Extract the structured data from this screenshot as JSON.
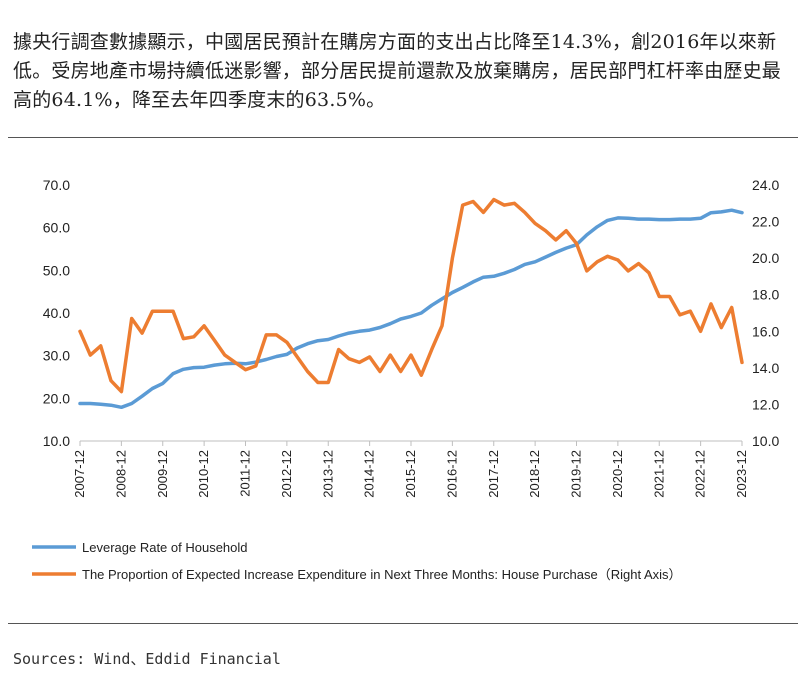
{
  "caption": "據央行調查數據顯示，中國居民預計在購房方面的支出占比降至14.3%，創2016年以來新低。受房地產市場持續低迷影響，部分居民提前還款及放棄購房，居民部門杠杆率由歷史最高的64.1%，降至去年四季度末的63.5%。",
  "source": "Sources: Wind、Eddid Financial",
  "chart_data": {
    "type": "line",
    "title": "",
    "xlabel": "",
    "ylabel": "",
    "left_axis": {
      "ylim": [
        10.0,
        70.0
      ],
      "ticks": [
        "10.0",
        "20.0",
        "30.0",
        "40.0",
        "50.0",
        "60.0",
        "70.0"
      ]
    },
    "right_axis": {
      "ylim": [
        10.0,
        24.0
      ],
      "ticks": [
        "10.0",
        "12.0",
        "14.0",
        "16.0",
        "18.0",
        "20.0",
        "22.0",
        "24.0"
      ]
    },
    "x_ticks": [
      "2007-12",
      "2008-12",
      "2009-12",
      "2010-12",
      "2011-12",
      "2012-12",
      "2013-12",
      "2014-12",
      "2015-12",
      "2016-12",
      "2017-12",
      "2018-12",
      "2019-12",
      "2020-12",
      "2021-12",
      "2022-12",
      "2023-12"
    ],
    "x_start": 2007.75,
    "x_end": 2023.75,
    "grid": false,
    "legend_position": "bottom",
    "series": [
      {
        "name": "Leverage Rate of Household",
        "axis": "left",
        "color": "#5B9BD5",
        "points": [
          [
            2007.75,
            18.8
          ],
          [
            2008.0,
            18.8
          ],
          [
            2008.25,
            18.6
          ],
          [
            2008.5,
            18.4
          ],
          [
            2008.75,
            17.9
          ],
          [
            2009.0,
            18.8
          ],
          [
            2009.25,
            20.5
          ],
          [
            2009.5,
            22.3
          ],
          [
            2009.75,
            23.5
          ],
          [
            2010.0,
            25.8
          ],
          [
            2010.25,
            26.8
          ],
          [
            2010.5,
            27.2
          ],
          [
            2010.75,
            27.3
          ],
          [
            2011.0,
            27.8
          ],
          [
            2011.25,
            28.1
          ],
          [
            2011.5,
            28.2
          ],
          [
            2011.75,
            28.1
          ],
          [
            2012.0,
            28.5
          ],
          [
            2012.25,
            29.1
          ],
          [
            2012.5,
            29.8
          ],
          [
            2012.75,
            30.3
          ],
          [
            2013.0,
            31.8
          ],
          [
            2013.25,
            32.8
          ],
          [
            2013.5,
            33.5
          ],
          [
            2013.75,
            33.8
          ],
          [
            2014.0,
            34.6
          ],
          [
            2014.25,
            35.3
          ],
          [
            2014.5,
            35.7
          ],
          [
            2014.75,
            36.0
          ],
          [
            2015.0,
            36.6
          ],
          [
            2015.25,
            37.5
          ],
          [
            2015.5,
            38.6
          ],
          [
            2015.75,
            39.2
          ],
          [
            2016.0,
            40.0
          ],
          [
            2016.25,
            41.8
          ],
          [
            2016.5,
            43.3
          ],
          [
            2016.75,
            44.8
          ],
          [
            2017.0,
            46.0
          ],
          [
            2017.25,
            47.3
          ],
          [
            2017.5,
            48.4
          ],
          [
            2017.75,
            48.6
          ],
          [
            2018.0,
            49.3
          ],
          [
            2018.25,
            50.2
          ],
          [
            2018.5,
            51.4
          ],
          [
            2018.75,
            52.0
          ],
          [
            2019.0,
            53.1
          ],
          [
            2019.25,
            54.2
          ],
          [
            2019.5,
            55.2
          ],
          [
            2019.75,
            56.0
          ],
          [
            2020.0,
            58.3
          ],
          [
            2020.25,
            60.2
          ],
          [
            2020.5,
            61.7
          ],
          [
            2020.75,
            62.3
          ],
          [
            2021.0,
            62.2
          ],
          [
            2021.25,
            62.0
          ],
          [
            2021.5,
            62.0
          ],
          [
            2021.75,
            61.9
          ],
          [
            2022.0,
            61.9
          ],
          [
            2022.25,
            62.0
          ],
          [
            2022.5,
            62.0
          ],
          [
            2022.75,
            62.2
          ],
          [
            2023.0,
            63.5
          ],
          [
            2023.25,
            63.7
          ],
          [
            2023.5,
            64.1
          ],
          [
            2023.75,
            63.5
          ]
        ]
      },
      {
        "name": "The Proportion of Expected Increase Expenditure in Next Three Months: House Purchase（Right Axis）",
        "axis": "right",
        "color": "#ED7D31",
        "points": [
          [
            2007.75,
            16.0
          ],
          [
            2008.0,
            14.7
          ],
          [
            2008.25,
            15.2
          ],
          [
            2008.5,
            13.3
          ],
          [
            2008.75,
            12.7
          ],
          [
            2009.0,
            16.7
          ],
          [
            2009.25,
            15.9
          ],
          [
            2009.5,
            17.1
          ],
          [
            2009.75,
            17.1
          ],
          [
            2010.0,
            17.1
          ],
          [
            2010.25,
            15.6
          ],
          [
            2010.5,
            15.7
          ],
          [
            2010.75,
            16.3
          ],
          [
            2011.0,
            15.5
          ],
          [
            2011.25,
            14.7
          ],
          [
            2011.5,
            14.3
          ],
          [
            2011.75,
            13.9
          ],
          [
            2012.0,
            14.1
          ],
          [
            2012.25,
            15.8
          ],
          [
            2012.5,
            15.8
          ],
          [
            2012.75,
            15.4
          ],
          [
            2013.0,
            14.6
          ],
          [
            2013.25,
            13.8
          ],
          [
            2013.5,
            13.2
          ],
          [
            2013.75,
            13.2
          ],
          [
            2014.0,
            15.0
          ],
          [
            2014.25,
            14.5
          ],
          [
            2014.5,
            14.3
          ],
          [
            2014.75,
            14.6
          ],
          [
            2015.0,
            13.8
          ],
          [
            2015.25,
            14.7
          ],
          [
            2015.5,
            13.8
          ],
          [
            2015.75,
            14.7
          ],
          [
            2016.0,
            13.6
          ],
          [
            2016.25,
            15.0
          ],
          [
            2016.5,
            16.3
          ],
          [
            2016.75,
            20.0
          ],
          [
            2017.0,
            22.9
          ],
          [
            2017.25,
            23.1
          ],
          [
            2017.5,
            22.5
          ],
          [
            2017.75,
            23.2
          ],
          [
            2018.0,
            22.9
          ],
          [
            2018.25,
            23.0
          ],
          [
            2018.5,
            22.5
          ],
          [
            2018.75,
            21.9
          ],
          [
            2019.0,
            21.5
          ],
          [
            2019.25,
            21.0
          ],
          [
            2019.5,
            21.5
          ],
          [
            2019.75,
            20.8
          ],
          [
            2020.0,
            19.3
          ],
          [
            2020.25,
            19.8
          ],
          [
            2020.5,
            20.1
          ],
          [
            2020.75,
            19.9
          ],
          [
            2021.0,
            19.3
          ],
          [
            2021.25,
            19.7
          ],
          [
            2021.5,
            19.2
          ],
          [
            2021.75,
            17.9
          ],
          [
            2022.0,
            17.9
          ],
          [
            2022.25,
            16.9
          ],
          [
            2022.5,
            17.1
          ],
          [
            2022.75,
            16.0
          ],
          [
            2023.0,
            17.5
          ],
          [
            2023.25,
            16.2
          ],
          [
            2023.5,
            17.3
          ],
          [
            2023.75,
            14.3
          ]
        ]
      }
    ]
  }
}
